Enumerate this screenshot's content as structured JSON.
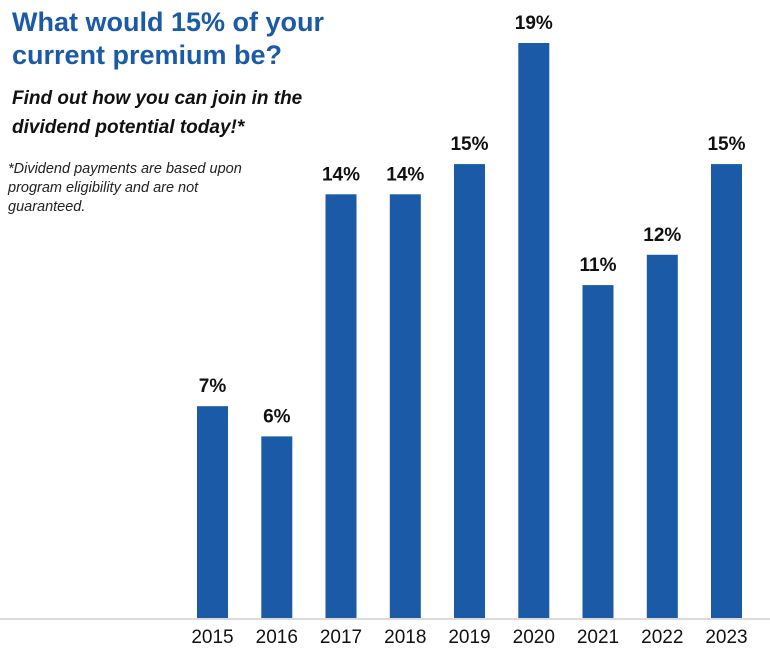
{
  "headline": "What would 15% of your current premium be?",
  "subhead": "Find out how you can join in the dividend potential today!*",
  "disclaimer": "*Dividend payments are based upon program eligibility and are not guaranteed.",
  "colors": {
    "bar": "#1a5aa6",
    "headline": "#1a5aa6",
    "baseline": "#cfcfcf"
  },
  "chart_data": {
    "type": "bar",
    "categories": [
      "2015",
      "2016",
      "2017",
      "2018",
      "2019",
      "2020",
      "2021",
      "2022",
      "2023"
    ],
    "values": [
      7,
      6,
      14,
      14,
      15,
      19,
      11,
      12,
      15
    ],
    "value_labels": [
      "7%",
      "6%",
      "14%",
      "14%",
      "15%",
      "19%",
      "11%",
      "12%",
      "15%"
    ],
    "title": "What would 15% of your current premium be?",
    "xlabel": "",
    "ylabel": "",
    "ylim": [
      0,
      19
    ],
    "grid": false,
    "legend": "none"
  }
}
